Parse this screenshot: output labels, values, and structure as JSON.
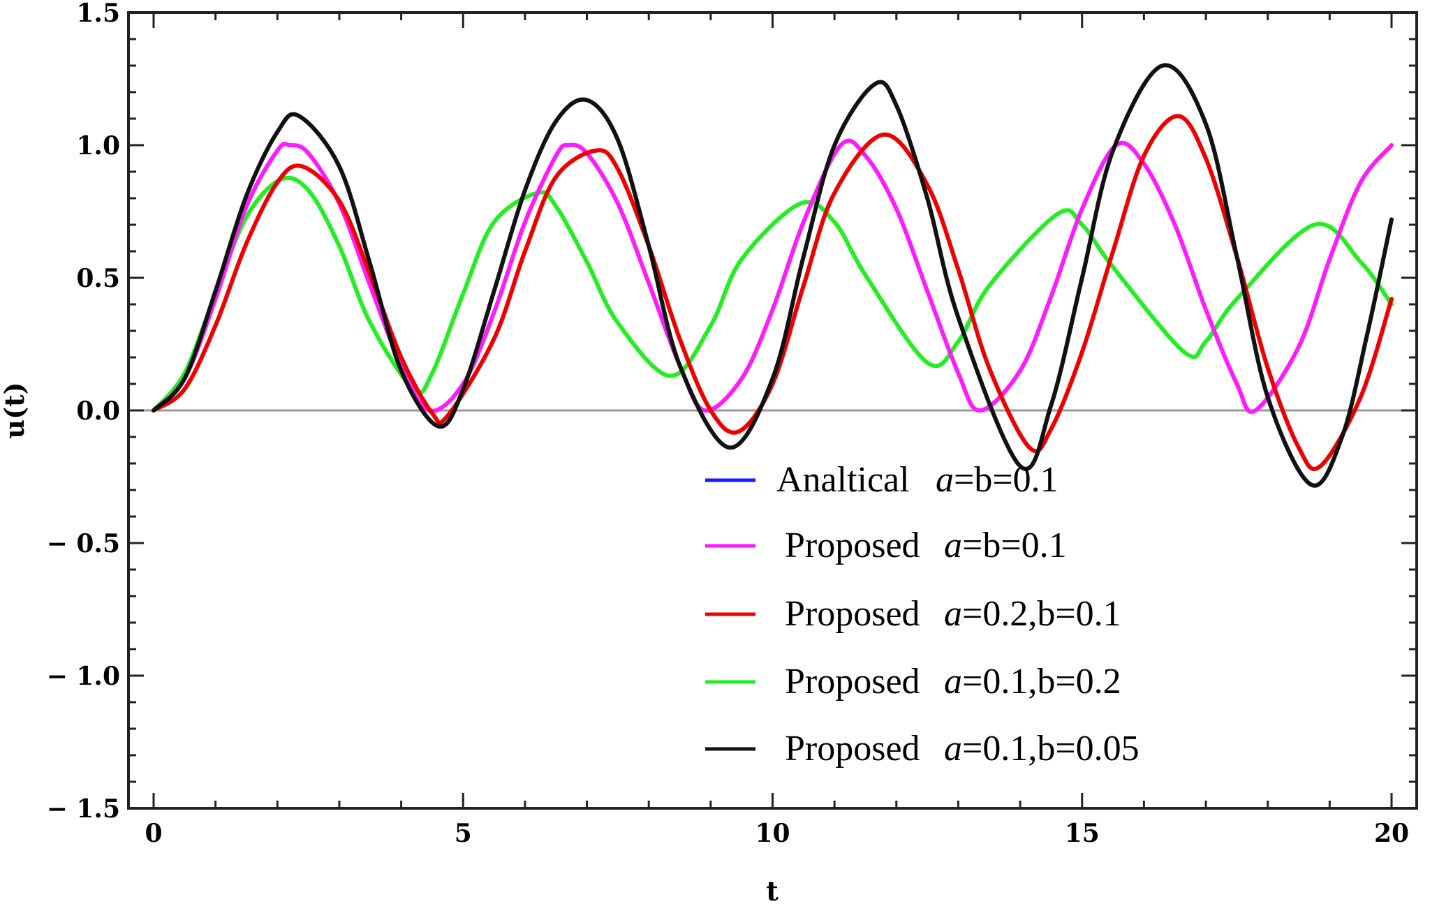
{
  "chart_data": {
    "type": "line",
    "title": "",
    "xlabel": "t",
    "ylabel": "u(t)",
    "xlim": [
      0,
      20
    ],
    "ylim": [
      -1.5,
      1.5
    ],
    "x_ticks": [
      {
        "value": 0,
        "label": "0"
      },
      {
        "value": 5,
        "label": "5"
      },
      {
        "value": 10,
        "label": "10"
      },
      {
        "value": 15,
        "label": "15"
      },
      {
        "value": 20,
        "label": "20"
      }
    ],
    "y_ticks": [
      {
        "value": 1.5,
        "label": "1.5"
      },
      {
        "value": 1.0,
        "label": "1.0"
      },
      {
        "value": 0.5,
        "label": "0.5"
      },
      {
        "value": 0.0,
        "label": "0.0"
      },
      {
        "value": -0.5,
        "label": "− 0.5"
      },
      {
        "value": -1.0,
        "label": "− 1.0"
      },
      {
        "value": -1.5,
        "label": "− 1.5"
      }
    ],
    "grid": false,
    "zero_line": true,
    "legend_position": "lower-right",
    "series": [
      {
        "name": "Analtical",
        "param_prefix": "",
        "param_italic": "a",
        "param_rest": "=b=0.1",
        "color": "#1a1aff",
        "visible": false,
        "x": [
          0,
          0.5,
          1,
          1.5,
          2,
          2.2,
          2.5,
          3,
          3.5,
          4,
          4.45,
          5,
          5.5,
          6,
          6.5,
          6.7,
          7,
          7.5,
          8,
          8.5,
          8.9,
          9.5,
          10,
          10.5,
          11.1,
          11.5,
          12,
          12.5,
          13,
          13.35,
          14,
          14.5,
          15,
          15.55,
          16,
          16.5,
          17,
          17.5,
          17.8,
          18.5,
          19,
          19.5,
          20
        ],
        "y": [
          0,
          0.12,
          0.42,
          0.77,
          0.98,
          1.0,
          0.97,
          0.78,
          0.47,
          0.17,
          0.0,
          0.1,
          0.37,
          0.71,
          0.96,
          1.0,
          0.97,
          0.78,
          0.48,
          0.17,
          0.0,
          0.12,
          0.38,
          0.71,
          1.0,
          0.96,
          0.76,
          0.45,
          0.14,
          0.0,
          0.15,
          0.43,
          0.76,
          1.0,
          0.93,
          0.7,
          0.38,
          0.1,
          0.0,
          0.24,
          0.57,
          0.86,
          1.0
        ]
      },
      {
        "name": "Proposed",
        "param_prefix": "",
        "param_italic": "a",
        "param_rest": "=b=0.1",
        "color": "#ff1aff",
        "visible": true,
        "x": [
          0,
          0.5,
          1,
          1.5,
          2,
          2.2,
          2.5,
          3,
          3.5,
          4,
          4.45,
          5,
          5.5,
          6,
          6.5,
          6.7,
          7,
          7.5,
          8,
          8.5,
          8.9,
          9.5,
          10,
          10.5,
          11.1,
          11.5,
          12,
          12.5,
          13,
          13.35,
          14,
          14.5,
          15,
          15.55,
          16,
          16.5,
          17,
          17.5,
          17.8,
          18.5,
          19,
          19.5,
          20
        ],
        "y": [
          0,
          0.12,
          0.42,
          0.77,
          0.98,
          1.0,
          0.97,
          0.78,
          0.47,
          0.17,
          0.0,
          0.1,
          0.37,
          0.71,
          0.96,
          1.0,
          0.97,
          0.78,
          0.48,
          0.17,
          0.0,
          0.12,
          0.38,
          0.71,
          1.0,
          0.96,
          0.76,
          0.45,
          0.14,
          0.0,
          0.15,
          0.43,
          0.76,
          1.0,
          0.93,
          0.7,
          0.38,
          0.1,
          0.0,
          0.24,
          0.57,
          0.86,
          1.0
        ]
      },
      {
        "name": "Proposed",
        "param_prefix": "",
        "param_italic": "a",
        "param_rest": "=0.2,b=0.1",
        "color": "#ee0000",
        "visible": true,
        "x": [
          0,
          0.5,
          1,
          1.5,
          2,
          2.4,
          3,
          3.5,
          4,
          4.5,
          4.75,
          5.5,
          6,
          6.5,
          7.15,
          7.5,
          8,
          8.5,
          9,
          9.45,
          10,
          10.5,
          11,
          11.8,
          12.5,
          13,
          13.5,
          14.15,
          14.5,
          15,
          15.5,
          16,
          16.55,
          17,
          17.5,
          18,
          18.5,
          18.85,
          19.5,
          20
        ],
        "y": [
          0,
          0.08,
          0.32,
          0.63,
          0.86,
          0.92,
          0.79,
          0.51,
          0.2,
          -0.01,
          -0.02,
          0.27,
          0.6,
          0.88,
          0.98,
          0.91,
          0.62,
          0.27,
          0.0,
          -0.08,
          0.1,
          0.47,
          0.82,
          1.04,
          0.85,
          0.53,
          0.16,
          -0.14,
          -0.07,
          0.22,
          0.6,
          0.96,
          1.11,
          0.95,
          0.58,
          0.16,
          -0.14,
          -0.21,
          0.05,
          0.42
        ]
      },
      {
        "name": "Proposed",
        "param_prefix": "",
        "param_italic": "a",
        "param_rest": "=0.1,b=0.2",
        "color": "#22ee22",
        "visible": true,
        "x": [
          0,
          0.5,
          1,
          1.5,
          2.05,
          2.5,
          3,
          3.5,
          4.2,
          4.5,
          5,
          5.5,
          6.2,
          6.5,
          7,
          7.5,
          8.35,
          9,
          9.5,
          10.45,
          11,
          11.5,
          12.5,
          13,
          13.5,
          14.6,
          15,
          15.5,
          16.65,
          17,
          17.5,
          18.75,
          19.5,
          20
        ],
        "y": [
          0,
          0.14,
          0.44,
          0.73,
          0.87,
          0.83,
          0.62,
          0.33,
          0.08,
          0.14,
          0.44,
          0.71,
          0.82,
          0.77,
          0.56,
          0.33,
          0.13,
          0.32,
          0.57,
          0.78,
          0.71,
          0.51,
          0.18,
          0.26,
          0.47,
          0.74,
          0.7,
          0.54,
          0.22,
          0.26,
          0.42,
          0.7,
          0.56,
          0.4
        ]
      },
      {
        "name": "Proposed",
        "param_prefix": "",
        "param_italic": "a",
        "param_rest": "=0.1,b=0.05",
        "color": "#111111",
        "visible": true,
        "x": [
          0,
          0.5,
          1,
          1.5,
          2,
          2.35,
          3,
          3.5,
          4,
          4.6,
          5,
          5.5,
          6,
          6.5,
          7.0,
          7.5,
          8,
          8.5,
          9.3,
          10,
          10.5,
          11,
          11.65,
          12,
          12.5,
          13,
          14.0,
          14.5,
          15,
          15.5,
          16.3,
          17,
          17.5,
          18,
          18.7,
          19.2,
          19.6,
          20
        ],
        "y": [
          0,
          0.12,
          0.45,
          0.81,
          1.05,
          1.11,
          0.92,
          0.55,
          0.15,
          -0.06,
          0.08,
          0.45,
          0.83,
          1.09,
          1.17,
          1.02,
          0.62,
          0.17,
          -0.14,
          0.12,
          0.58,
          1.0,
          1.23,
          1.15,
          0.8,
          0.35,
          -0.21,
          0.02,
          0.5,
          0.98,
          1.3,
          1.08,
          0.58,
          0.05,
          -0.28,
          -0.1,
          0.28,
          0.72
        ]
      }
    ]
  }
}
